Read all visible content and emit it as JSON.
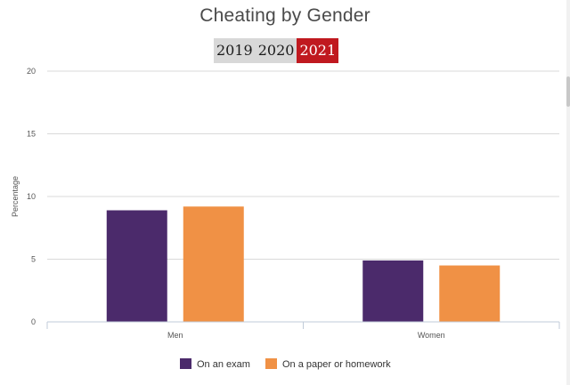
{
  "page": {
    "title": "Cheating by Gender",
    "years": [
      {
        "label": "2019",
        "active": false
      },
      {
        "label": "2020",
        "active": false
      },
      {
        "label": "2021",
        "active": true
      }
    ]
  },
  "chart_data": {
    "type": "bar",
    "title": "Cheating by Gender",
    "xlabel": "",
    "ylabel": "Percentage",
    "categories": [
      "Men",
      "Women"
    ],
    "series": [
      {
        "name": "On an exam",
        "color": "#4b2a6b",
        "values": [
          8.9,
          4.9
        ]
      },
      {
        "name": "On a paper or homework",
        "color": "#f09145",
        "values": [
          9.2,
          4.5
        ]
      }
    ],
    "ylim": [
      0,
      20
    ],
    "yticks": [
      0,
      5,
      10,
      15,
      20
    ],
    "grid": true,
    "legend": "bottom"
  }
}
